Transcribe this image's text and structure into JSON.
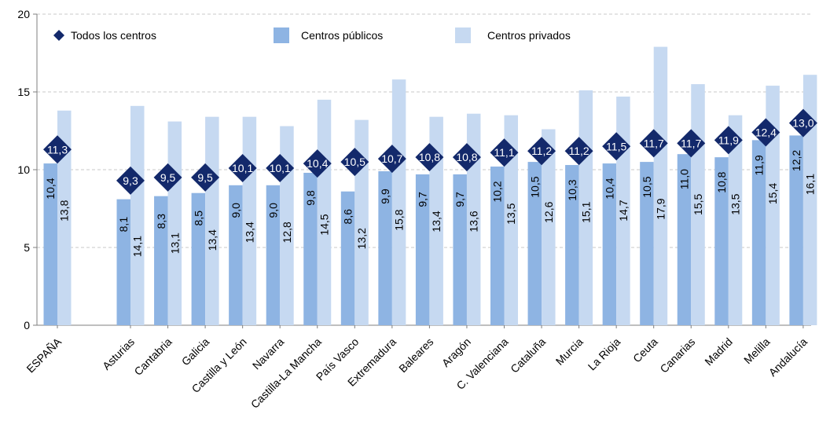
{
  "chart_data": {
    "type": "bar",
    "categories": [
      "ESPAÑA",
      "Asturias",
      "Cantabria",
      "Galicia",
      "Castilla y León",
      "Navarra",
      "Castilla-La Mancha",
      "País Vasco",
      "Extremadura",
      "Baleares",
      "Aragón",
      "C. Valenciana",
      "Cataluña",
      "Murcia",
      "La Rioja",
      "Ceuta",
      "Canarias",
      "Madrid",
      "Melilla",
      "Andalucía"
    ],
    "series": [
      {
        "name": "Todos los centros",
        "kind": "marker",
        "values": [
          11.3,
          9.3,
          9.5,
          9.5,
          10.1,
          10.1,
          10.4,
          10.5,
          10.7,
          10.8,
          10.8,
          11.1,
          11.2,
          11.2,
          11.5,
          11.7,
          11.7,
          11.9,
          12.4,
          13.0
        ],
        "labels": [
          "11,3",
          "9,3",
          "9,5",
          "9,5",
          "10,1",
          "10,1",
          "10,4",
          "10,5",
          "10,7",
          "10,8",
          "10,8",
          "11,1",
          "11,2",
          "11,2",
          "11,5",
          "11,7",
          "11,7",
          "11,9",
          "12,4",
          "13,0"
        ]
      },
      {
        "name": "Centros públicos",
        "kind": "bar",
        "values": [
          10.4,
          8.1,
          8.3,
          8.5,
          9.0,
          9.0,
          9.8,
          8.6,
          9.9,
          9.7,
          9.7,
          10.2,
          10.5,
          10.3,
          10.4,
          10.5,
          11.0,
          10.8,
          11.9,
          12.2
        ],
        "labels": [
          "10,4",
          "8,1",
          "8,3",
          "8,5",
          "9,0",
          "9,0",
          "9,8",
          "8,6",
          "9,9",
          "9,7",
          "9,7",
          "10,2",
          "10,5",
          "10,3",
          "10,4",
          "10,5",
          "11,0",
          "10,8",
          "11,9",
          "12,2"
        ]
      },
      {
        "name": "Centros privados",
        "kind": "bar",
        "values": [
          13.8,
          14.1,
          13.1,
          13.4,
          13.4,
          12.8,
          14.5,
          13.2,
          15.8,
          13.4,
          13.6,
          13.5,
          12.6,
          15.1,
          14.7,
          17.9,
          15.5,
          13.5,
          15.4,
          16.1
        ],
        "labels": [
          "13,8",
          "14,1",
          "13,1",
          "13,4",
          "13,4",
          "12,8",
          "14,5",
          "13,2",
          "15,8",
          "13,4",
          "13,6",
          "13,5",
          "12,6",
          "15,1",
          "14,7",
          "17,9",
          "15,5",
          "13,5",
          "15,4",
          "16,1"
        ]
      }
    ],
    "ylim": [
      0,
      20
    ],
    "yticks": [
      "0",
      "5",
      "10",
      "15",
      "20"
    ],
    "grid": true,
    "legend_position": "top",
    "colors": {
      "marker": "#13296b",
      "public": "#8eb4e3",
      "private": "#c6d9f1",
      "grid": "#c8c8c8",
      "axis": "#7f7f7f"
    }
  }
}
